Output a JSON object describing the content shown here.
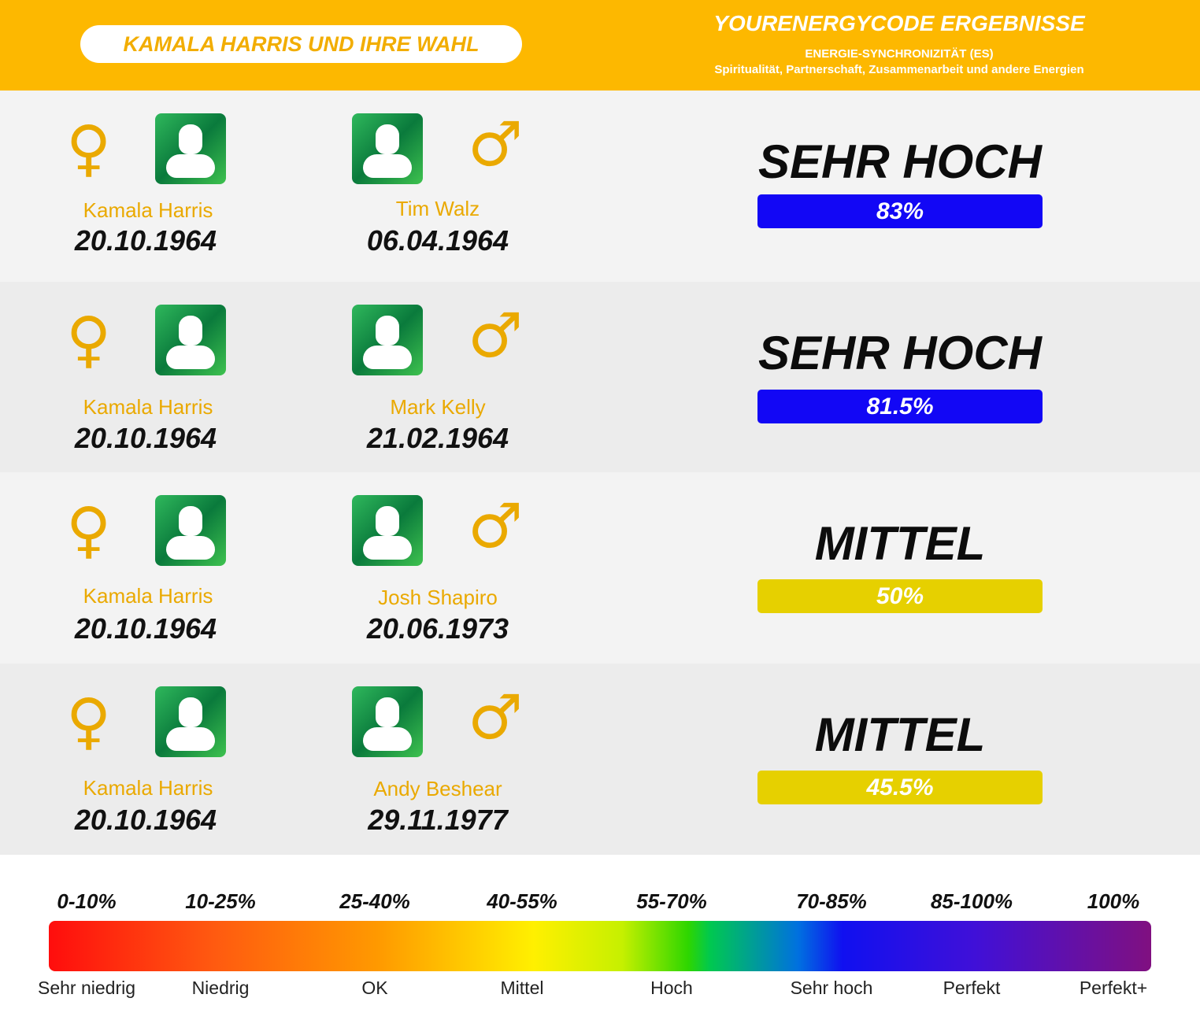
{
  "header": {
    "pill": "KAMALA HARRIS UND IHRE WAHL",
    "title": "YOURENERGYCODE ERGEBNISSE",
    "subtitle": "ENERGIE-SYNCHRONIZITÄT (ES)",
    "description": "Spiritualität, Partnerschaft, Zusammenarbeit und andere Energien"
  },
  "symbols": {
    "female": "♀",
    "male": "♂"
  },
  "rows": [
    {
      "p1": {
        "name": "Kamala Harris",
        "date": "20.10.1964"
      },
      "p2": {
        "name": "Tim Walz",
        "date": "06.04.1964"
      },
      "level": "SEHR HOCH",
      "percent": "83%",
      "color": "#1207f5"
    },
    {
      "p1": {
        "name": "Kamala Harris",
        "date": "20.10.1964"
      },
      "p2": {
        "name": "Mark Kelly",
        "date": "21.02.1964"
      },
      "level": "SEHR HOCH",
      "percent": "81.5%",
      "color": "#1207f5"
    },
    {
      "p1": {
        "name": "Kamala Harris",
        "date": "20.10.1964"
      },
      "p2": {
        "name": "Josh Shapiro",
        "date": "20.06.1973"
      },
      "level": "MITTEL",
      "percent": "50%",
      "color": "#e6d000"
    },
    {
      "p1": {
        "name": "Kamala Harris",
        "date": "20.10.1964"
      },
      "p2": {
        "name": "Andy Beshear",
        "date": "29.11.1977"
      },
      "level": "MITTEL",
      "percent": "45.5%",
      "color": "#e6d000"
    }
  ],
  "legend": [
    {
      "range": "0-10%",
      "label": "Sehr niedrig"
    },
    {
      "range": "10-25%",
      "label": "Niedrig"
    },
    {
      "range": "25-40%",
      "label": "OK"
    },
    {
      "range": "40-55%",
      "label": "Mittel"
    },
    {
      "range": "55-70%",
      "label": "Hoch"
    },
    {
      "range": "70-85%",
      "label": "Sehr hoch"
    },
    {
      "range": "85-100%",
      "label": "Perfekt"
    },
    {
      "range": "100%",
      "label": "Perfekt+"
    }
  ]
}
